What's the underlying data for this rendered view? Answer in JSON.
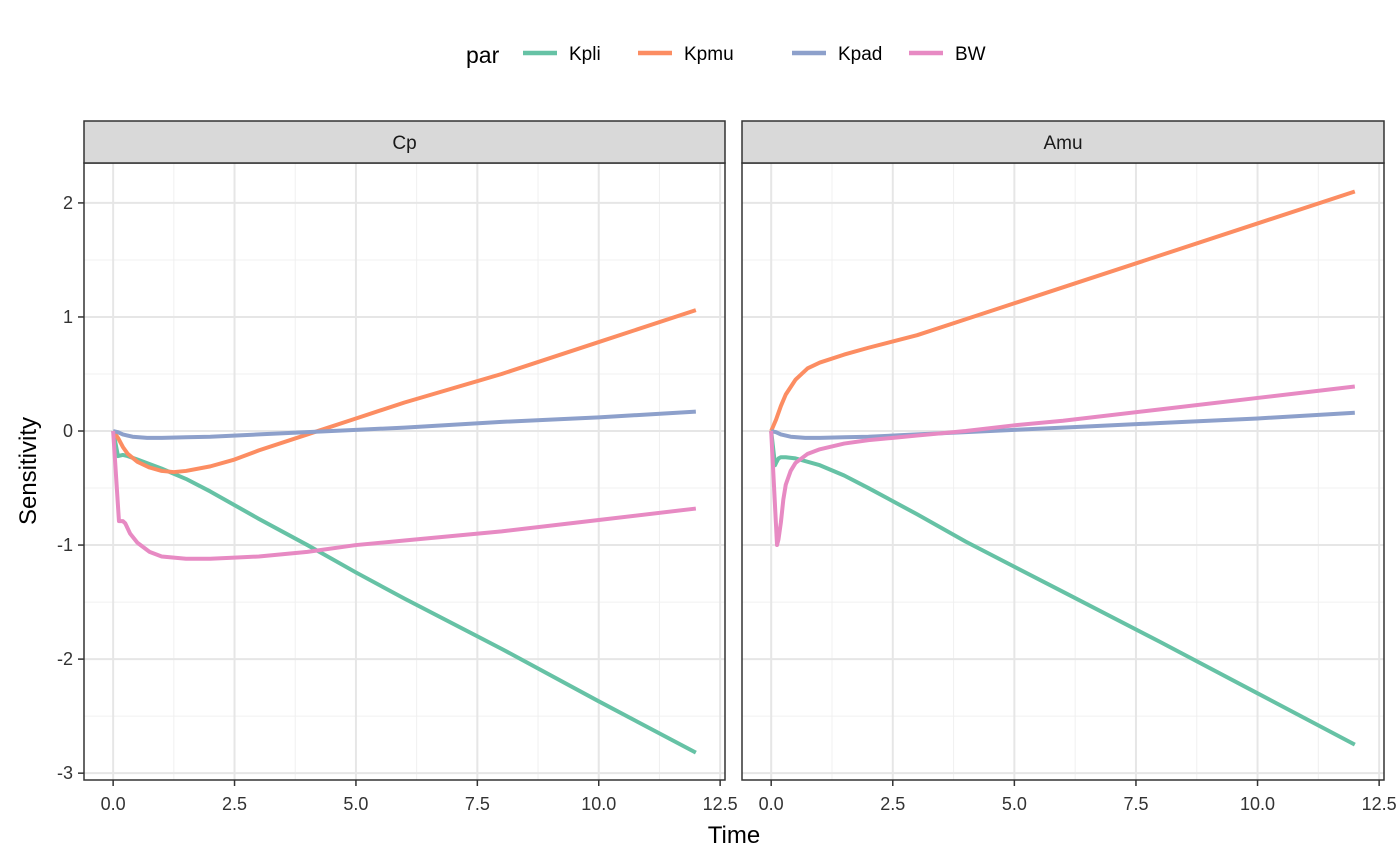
{
  "chart_data": {
    "type": "line",
    "xlabel": "Time",
    "ylabel": "Sensitivity",
    "xlim": [
      -0.6,
      12.6
    ],
    "ylim": [
      -3.06,
      2.35
    ],
    "x_ticks": [
      0.0,
      2.5,
      5.0,
      7.5,
      10.0,
      12.5
    ],
    "x_tick_labels": [
      "0.0",
      "2.5",
      "5.0",
      "7.5",
      "10.0",
      "12.5"
    ],
    "y_ticks": [
      -3,
      -2,
      -1,
      0,
      1,
      2
    ],
    "y_tick_labels": [
      "-3",
      "-2",
      "-1",
      "0",
      "1",
      "2"
    ],
    "grid": true,
    "legend": {
      "title": "par",
      "position": "top",
      "entries": [
        {
          "name": "Kpli",
          "color": "#66C2A5"
        },
        {
          "name": "Kpmu",
          "color": "#FC8D62"
        },
        {
          "name": "Kpad",
          "color": "#8DA0CB"
        },
        {
          "name": "BW",
          "color": "#E78AC3"
        }
      ]
    },
    "panels": [
      {
        "title": "Cp",
        "series": [
          {
            "name": "Kpli",
            "x": [
              0,
              0.1,
              0.2,
              0.3,
              0.5,
              1.0,
              1.5,
              2.0,
              3.0,
              4.0,
              5.0,
              6.0,
              8.0,
              10.0,
              12.0
            ],
            "y": [
              0,
              -0.22,
              -0.21,
              -0.22,
              -0.25,
              -0.33,
              -0.42,
              -0.53,
              -0.77,
              -1.0,
              -1.24,
              -1.47,
              -1.91,
              -2.37,
              -2.82
            ]
          },
          {
            "name": "Kpmu",
            "x": [
              0,
              0.1,
              0.2,
              0.3,
              0.5,
              0.75,
              1.0,
              1.25,
              1.5,
              2.0,
              2.5,
              3.0,
              4.0,
              5.0,
              6.0,
              8.0,
              10.0,
              12.0
            ],
            "y": [
              0,
              -0.06,
              -0.14,
              -0.2,
              -0.27,
              -0.32,
              -0.35,
              -0.36,
              -0.35,
              -0.31,
              -0.25,
              -0.17,
              -0.03,
              0.11,
              0.25,
              0.5,
              0.78,
              1.06
            ]
          },
          {
            "name": "Kpad",
            "x": [
              0,
              0.1,
              0.2,
              0.4,
              0.7,
              1.0,
              1.5,
              2.0,
              3.0,
              4.0,
              5.0,
              6.0,
              8.0,
              10.0,
              12.0
            ],
            "y": [
              0,
              -0.01,
              -0.03,
              -0.05,
              -0.06,
              -0.06,
              -0.055,
              -0.05,
              -0.03,
              -0.01,
              0.01,
              0.03,
              0.08,
              0.12,
              0.17
            ]
          },
          {
            "name": "BW",
            "x": [
              0,
              0.12,
              0.15,
              0.2,
              0.25,
              0.35,
              0.5,
              0.75,
              1.0,
              1.5,
              2.0,
              2.5,
              3.0,
              4.0,
              5.0,
              6.0,
              8.0,
              10.0,
              12.0
            ],
            "y": [
              0,
              -0.79,
              -0.79,
              -0.79,
              -0.81,
              -0.9,
              -0.98,
              -1.06,
              -1.1,
              -1.12,
              -1.12,
              -1.11,
              -1.1,
              -1.06,
              -1.0,
              -0.96,
              -0.88,
              -0.78,
              -0.68
            ]
          }
        ]
      },
      {
        "title": "Amu",
        "series": [
          {
            "name": "Kpli",
            "x": [
              0,
              0.08,
              0.1,
              0.15,
              0.2,
              0.3,
              0.5,
              1.0,
              1.5,
              2.0,
              3.0,
              4.0,
              5.0,
              6.0,
              8.0,
              10.0,
              12.0
            ],
            "y": [
              0,
              -0.3,
              -0.28,
              -0.24,
              -0.23,
              -0.23,
              -0.24,
              -0.3,
              -0.39,
              -0.5,
              -0.73,
              -0.97,
              -1.19,
              -1.41,
              -1.85,
              -2.3,
              -2.75
            ]
          },
          {
            "name": "Kpmu",
            "x": [
              0,
              0.1,
              0.2,
              0.3,
              0.5,
              0.75,
              1.0,
              1.5,
              2.0,
              3.0,
              4.0,
              5.0,
              6.0,
              8.0,
              10.0,
              12.0
            ],
            "y": [
              0,
              0.1,
              0.22,
              0.32,
              0.45,
              0.55,
              0.6,
              0.67,
              0.73,
              0.84,
              0.98,
              1.12,
              1.26,
              1.54,
              1.82,
              2.1
            ]
          },
          {
            "name": "Kpad",
            "x": [
              0,
              0.1,
              0.2,
              0.4,
              0.7,
              1.0,
              1.5,
              2.0,
              3.0,
              4.0,
              5.0,
              6.0,
              8.0,
              10.0,
              12.0
            ],
            "y": [
              0,
              -0.01,
              -0.03,
              -0.05,
              -0.06,
              -0.06,
              -0.055,
              -0.05,
              -0.03,
              -0.01,
              0.01,
              0.03,
              0.07,
              0.11,
              0.16
            ]
          },
          {
            "name": "BW",
            "x": [
              0,
              0.06,
              0.12,
              0.15,
              0.2,
              0.25,
              0.3,
              0.4,
              0.5,
              0.75,
              1.0,
              1.5,
              2.0,
              2.5,
              3.0,
              4.0,
              5.0,
              6.0,
              8.0,
              10.0,
              12.0
            ],
            "y": [
              0,
              -0.5,
              -1.0,
              -0.95,
              -0.8,
              -0.6,
              -0.47,
              -0.35,
              -0.28,
              -0.2,
              -0.16,
              -0.11,
              -0.08,
              -0.06,
              -0.04,
              0.0,
              0.05,
              0.09,
              0.19,
              0.29,
              0.39
            ]
          }
        ]
      }
    ]
  }
}
